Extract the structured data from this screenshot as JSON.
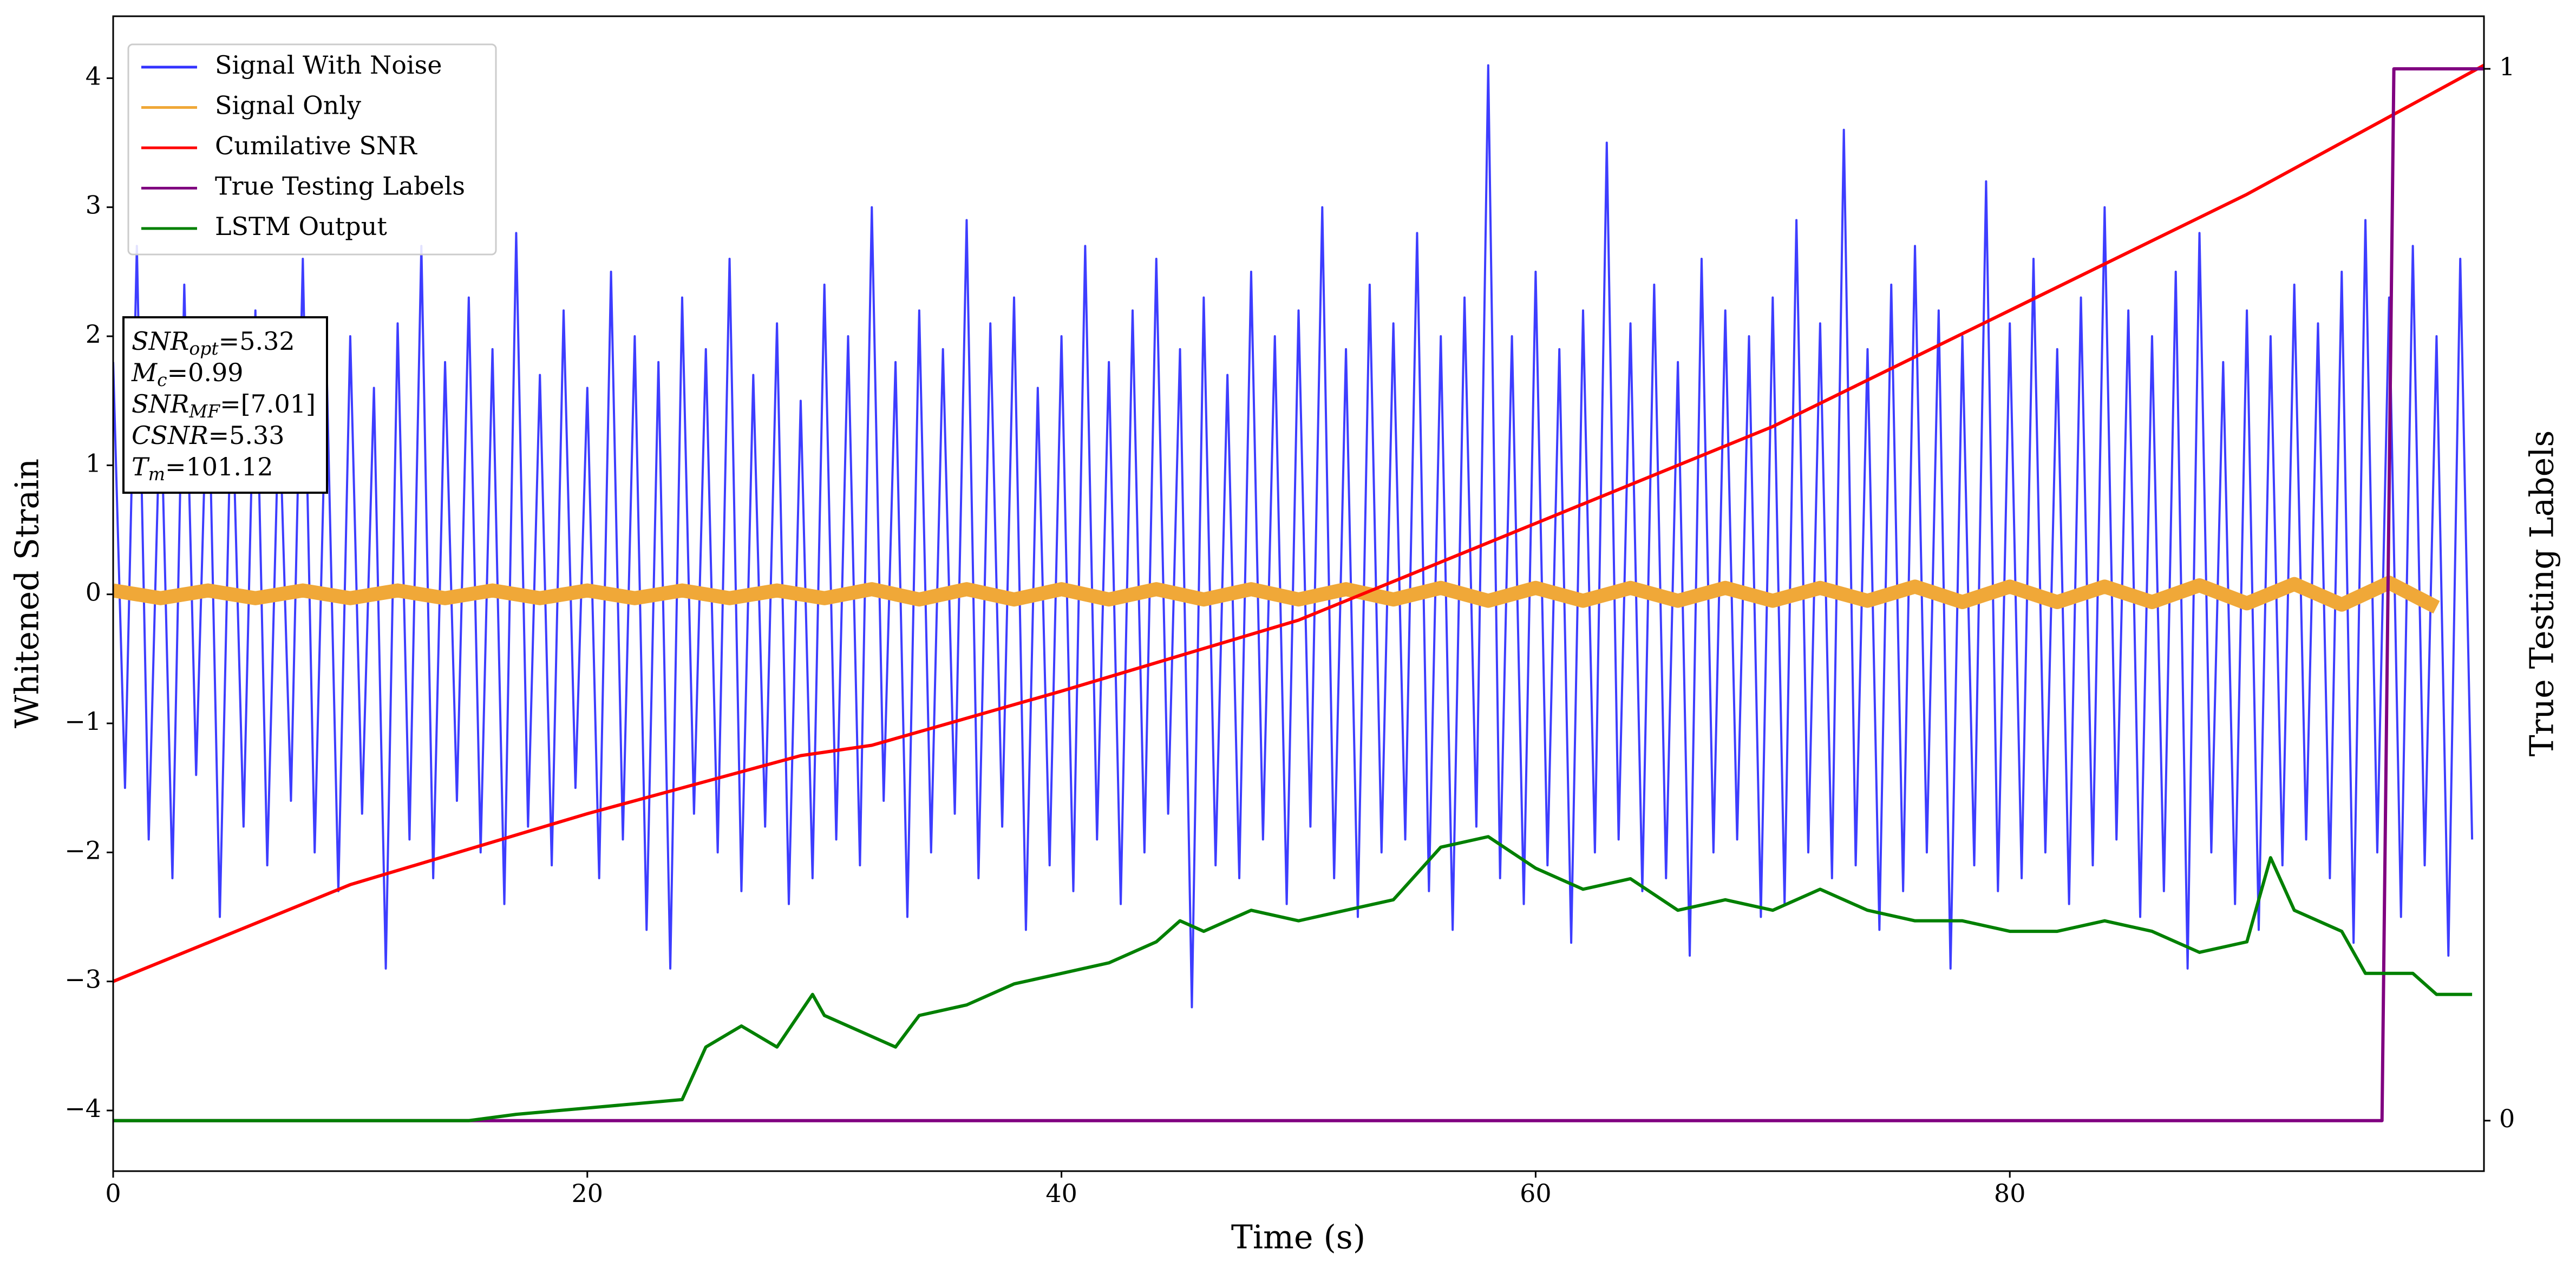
{
  "chart_data": {
    "type": "line",
    "xlabel": "Time (s)",
    "ylabel": "Whitened Strain",
    "y2label": "True Testing Labels",
    "xlim": [
      0,
      100
    ],
    "xticks": [
      0,
      20,
      40,
      60,
      80
    ],
    "ylim": [
      -4.47,
      4.48
    ],
    "yticks": [
      {
        "value": -4,
        "label": "−4"
      },
      {
        "value": -3,
        "label": "−3"
      },
      {
        "value": -2,
        "label": "−2"
      },
      {
        "value": -1,
        "label": "−1"
      },
      0,
      1,
      2,
      3,
      4
    ],
    "y2lim": [
      -0.048,
      1.05
    ],
    "y2ticks": [
      0,
      1
    ],
    "legend": "upper left",
    "series": [
      {
        "name": "Signal With Noise",
        "color": "#3333ff",
        "width": 4,
        "x": [
          0,
          0.5,
          1,
          1.5,
          2,
          2.5,
          3,
          3.5,
          4,
          4.5,
          5,
          5.5,
          6,
          6.5,
          7,
          7.5,
          8,
          8.5,
          9,
          9.5,
          10,
          10.5,
          11,
          11.5,
          12,
          12.5,
          13,
          13.5,
          14,
          14.5,
          15,
          15.5,
          16,
          16.5,
          17,
          17.5,
          18,
          18.5,
          19,
          19.5,
          20,
          20.5,
          21,
          21.5,
          22,
          22.5,
          23,
          23.5,
          24,
          24.5,
          25,
          25.5,
          26,
          26.5,
          27,
          27.5,
          28,
          28.5,
          29,
          29.5,
          30,
          30.5,
          31,
          31.5,
          32,
          32.5,
          33,
          33.5,
          34,
          34.5,
          35,
          35.5,
          36,
          36.5,
          37,
          37.5,
          38,
          38.5,
          39,
          39.5,
          40,
          40.5,
          41,
          41.5,
          42,
          42.5,
          43,
          43.5,
          44,
          44.5,
          45,
          45.5,
          46,
          46.5,
          47,
          47.5,
          48,
          48.5,
          49,
          49.5,
          50,
          50.5,
          51,
          51.5,
          52,
          52.5,
          53,
          53.5,
          54,
          54.5,
          55,
          55.5,
          56,
          56.5,
          57,
          57.5,
          58,
          58.5,
          59,
          59.5,
          60,
          60.5,
          61,
          61.5,
          62,
          62.5,
          63,
          63.5,
          64,
          64.5,
          65,
          65.5,
          66,
          66.5,
          67,
          67.5,
          68,
          68.5,
          69,
          69.5,
          70,
          70.5,
          71,
          71.5,
          72,
          72.5,
          73,
          73.5,
          74,
          74.5,
          75,
          75.5,
          76,
          76.5,
          77,
          77.5,
          78,
          78.5,
          79,
          79.5,
          80,
          80.5,
          81,
          81.5,
          82,
          82.5,
          83,
          83.5,
          84,
          84.5,
          85,
          85.5,
          86,
          86.5,
          87,
          87.5,
          88,
          88.5,
          89,
          89.5,
          90,
          90.5,
          91,
          91.5,
          92,
          92.5,
          93,
          93.5,
          94,
          94.5,
          95,
          95.5,
          96,
          96.5,
          97,
          97.5,
          98,
          98.5,
          99,
          99.5
        ],
        "values": [
          1.8,
          -1.5,
          2.7,
          -1.9,
          1.6,
          -2.2,
          2.4,
          -1.4,
          1.9,
          -2.5,
          1.7,
          -1.8,
          2.2,
          -2.1,
          1.5,
          -1.6,
          2.6,
          -2.0,
          1.8,
          -2.3,
          2.0,
          -1.7,
          1.6,
          -2.9,
          2.1,
          -1.9,
          2.7,
          -2.2,
          1.8,
          -1.6,
          2.3,
          -2.0,
          1.9,
          -2.4,
          2.8,
          -1.8,
          1.7,
          -2.1,
          2.2,
          -1.5,
          1.6,
          -2.2,
          2.5,
          -1.9,
          2.0,
          -2.6,
          1.8,
          -2.9,
          2.3,
          -1.7,
          1.9,
          -2.0,
          2.6,
          -2.3,
          1.7,
          -1.8,
          2.1,
          -2.4,
          1.5,
          -2.2,
          2.4,
          -1.9,
          2.0,
          -2.1,
          3.0,
          -1.6,
          1.8,
          -2.5,
          2.2,
          -2.0,
          1.9,
          -1.7,
          2.9,
          -2.2,
          2.1,
          -1.8,
          2.3,
          -2.6,
          1.6,
          -2.1,
          2.0,
          -2.3,
          2.7,
          -1.9,
          1.8,
          -2.4,
          2.2,
          -2.0,
          2.6,
          -1.7,
          1.9,
          -3.2,
          2.3,
          -2.1,
          1.7,
          -2.2,
          2.5,
          -1.9,
          2.0,
          -2.4,
          2.2,
          -1.8,
          3.0,
          -2.2,
          1.9,
          -2.5,
          2.4,
          -2.0,
          2.1,
          -1.9,
          2.8,
          -2.3,
          2.0,
          -2.6,
          2.3,
          -1.8,
          4.1,
          -2.2,
          2.0,
          -2.4,
          2.5,
          -2.1,
          1.9,
          -2.7,
          2.2,
          -2.0,
          3.5,
          -1.9,
          2.1,
          -2.3,
          2.4,
          -2.2,
          1.8,
          -2.8,
          2.6,
          -2.0,
          2.2,
          -1.9,
          2.0,
          -2.5,
          2.3,
          -2.4,
          2.9,
          -2.0,
          2.1,
          -2.2,
          3.6,
          -2.1,
          1.9,
          -2.6,
          2.4,
          -2.3,
          2.7,
          -2.0,
          2.2,
          -2.9,
          2.0,
          -2.1,
          3.2,
          -2.3,
          2.1,
          -2.2,
          2.6,
          -2.0,
          1.9,
          -2.4,
          2.3,
          -2.1,
          3.0,
          -1.9,
          2.2,
          -2.5,
          2.0,
          -2.3,
          2.5,
          -2.9,
          2.8,
          -2.0,
          1.8,
          -2.4,
          2.2,
          -2.6,
          2.0,
          -2.1,
          2.4,
          -1.9,
          2.1,
          -2.2,
          2.5,
          -2.7,
          2.9,
          -2.0,
          2.3,
          -2.5,
          2.7,
          -2.1,
          2.0,
          -2.8,
          2.6,
          -1.9
        ]
      },
      {
        "name": "Signal Only",
        "color": "#f0a838",
        "width": 26,
        "x": [
          0,
          2,
          4,
          6,
          8,
          10,
          12,
          14,
          16,
          18,
          20,
          22,
          24,
          26,
          28,
          30,
          32,
          34,
          36,
          38,
          40,
          42,
          44,
          46,
          48,
          50,
          52,
          54,
          56,
          58,
          60,
          62,
          64,
          66,
          68,
          70,
          72,
          74,
          76,
          78,
          80,
          82,
          84,
          86,
          88,
          90,
          92,
          94,
          96,
          98
        ],
        "values": [
          0.03,
          -0.03,
          0.03,
          -0.03,
          0.03,
          -0.03,
          0.03,
          -0.03,
          0.03,
          -0.03,
          0.03,
          -0.03,
          0.03,
          -0.03,
          0.03,
          -0.03,
          0.04,
          -0.04,
          0.04,
          -0.04,
          0.04,
          -0.04,
          0.04,
          -0.04,
          0.04,
          -0.04,
          0.04,
          -0.04,
          0.05,
          -0.05,
          0.05,
          -0.05,
          0.05,
          -0.05,
          0.05,
          -0.05,
          0.05,
          -0.05,
          0.06,
          -0.06,
          0.06,
          -0.06,
          0.06,
          -0.06,
          0.07,
          -0.07,
          0.08,
          -0.08,
          0.09,
          -0.1
        ]
      },
      {
        "name": "Cumilative SNR",
        "color": "#ff0000",
        "width": 6,
        "x": [
          0,
          10,
          20,
          29,
          32,
          40,
          50,
          60,
          70,
          80,
          90,
          100
        ],
        "values": [
          -3,
          -2.25,
          -1.7,
          -1.25,
          -1.17,
          -0.75,
          -0.2,
          0.55,
          1.3,
          2.2,
          3.1,
          4.1
        ]
      },
      {
        "name": "True Testing Labels",
        "color": "#800080",
        "width": 6,
        "axis": "y2",
        "x": [
          0,
          95.7,
          96.2,
          100
        ],
        "values": [
          0,
          0,
          1,
          1
        ]
      },
      {
        "name": "LSTM Output",
        "color": "#008000",
        "width": 6,
        "axis": "y2",
        "x": [
          0,
          15,
          17,
          20,
          24,
          25,
          26.5,
          28,
          29.5,
          30,
          33,
          34,
          36,
          38,
          40,
          42,
          44,
          45,
          46,
          48,
          50,
          52,
          54,
          56,
          58,
          60,
          62,
          64,
          66,
          68,
          70,
          72,
          74,
          76,
          78,
          80,
          82,
          84,
          86,
          88,
          90,
          91,
          92,
          94,
          95,
          96,
          97,
          98,
          99.5
        ],
        "values": [
          0,
          0,
          0.006,
          0.012,
          0.02,
          0.07,
          0.09,
          0.07,
          0.12,
          0.1,
          0.07,
          0.1,
          0.11,
          0.13,
          0.14,
          0.15,
          0.17,
          0.19,
          0.18,
          0.2,
          0.19,
          0.2,
          0.21,
          0.26,
          0.27,
          0.24,
          0.22,
          0.23,
          0.2,
          0.21,
          0.2,
          0.22,
          0.2,
          0.19,
          0.19,
          0.18,
          0.18,
          0.19,
          0.18,
          0.16,
          0.17,
          0.25,
          0.2,
          0.18,
          0.14,
          0.14,
          0.14,
          0.12,
          0.12
        ]
      }
    ],
    "annotation": [
      {
        "symbol": "SNR",
        "subscript": "opt",
        "text": "=5.32"
      },
      {
        "symbol": "M",
        "subscript": "c",
        "text": "=0.99"
      },
      {
        "symbol": "SNR",
        "subscript": "MF",
        "text": "=[7.01]"
      },
      {
        "symbol": "CSNR",
        "text": "=5.33"
      },
      {
        "symbol": "T",
        "subscript": "m",
        "text": "=101.12"
      }
    ]
  }
}
